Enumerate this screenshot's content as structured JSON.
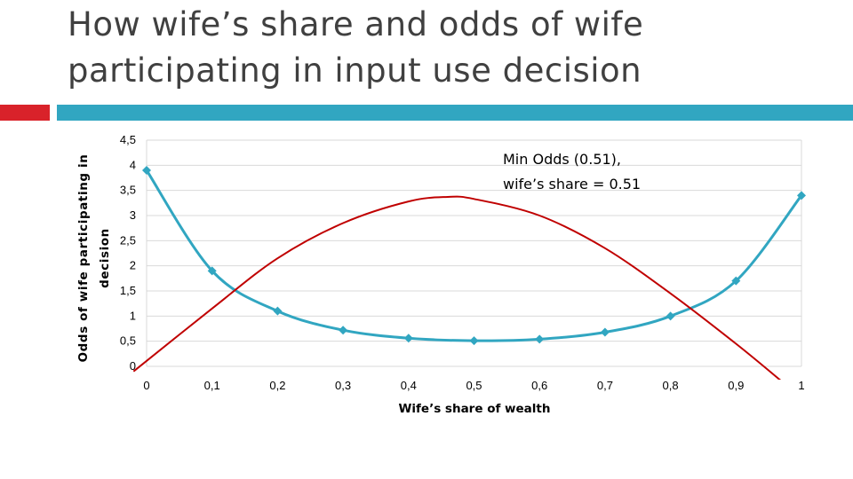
{
  "slide": {
    "title_line1": "How wife’s share and odds of wife",
    "title_line2": "participating in input use decision"
  },
  "colors": {
    "title": "#404040",
    "accent_red": "#d9222a",
    "accent_teal": "#31a6c1",
    "odds_series": "#31a6c1",
    "curve_series": "#c00000",
    "grid": "#d9d9d9"
  },
  "chart_data": {
    "type": "line",
    "xlabel": "Wife’s share of wealth",
    "ylabel_line1": "Odds of wife participating in",
    "ylabel_line2": "decision",
    "xlim": [
      0,
      1
    ],
    "ylim": [
      0,
      4.5
    ],
    "x_ticks": [
      "0",
      "0,1",
      "0,2",
      "0,3",
      "0,4",
      "0,5",
      "0,6",
      "0,7",
      "0,8",
      "0,9",
      "1"
    ],
    "y_ticks": [
      "0",
      "0,5",
      "1",
      "1,5",
      "2",
      "2,5",
      "3",
      "3,5",
      "4",
      "4,5"
    ],
    "grid": true,
    "series": [
      {
        "x": [
          0,
          0.1,
          0.2,
          0.3,
          0.4,
          0.5,
          0.6,
          0.7,
          0.8,
          0.9,
          1
        ],
        "values": [
          3.9,
          1.9,
          1.1,
          0.72,
          0.56,
          0.51,
          0.54,
          0.68,
          1.0,
          1.7,
          3.4
        ],
        "color": "#31a6c1",
        "marker": "diamond",
        "smooth": true
      },
      {
        "x": [
          -0.02,
          0.1,
          0.2,
          0.3,
          0.4,
          0.46,
          0.5,
          0.6,
          0.7,
          0.8,
          0.9,
          0.97
        ],
        "values": [
          -0.1,
          1.15,
          2.15,
          2.85,
          3.28,
          3.37,
          3.33,
          3.0,
          2.35,
          1.45,
          0.45,
          -0.3
        ],
        "color": "#c00000",
        "marker": "none",
        "smooth": true
      }
    ],
    "annotation": {
      "line1": "Min Odds (0.51),",
      "line2": "wife’s share = 0.51"
    }
  }
}
